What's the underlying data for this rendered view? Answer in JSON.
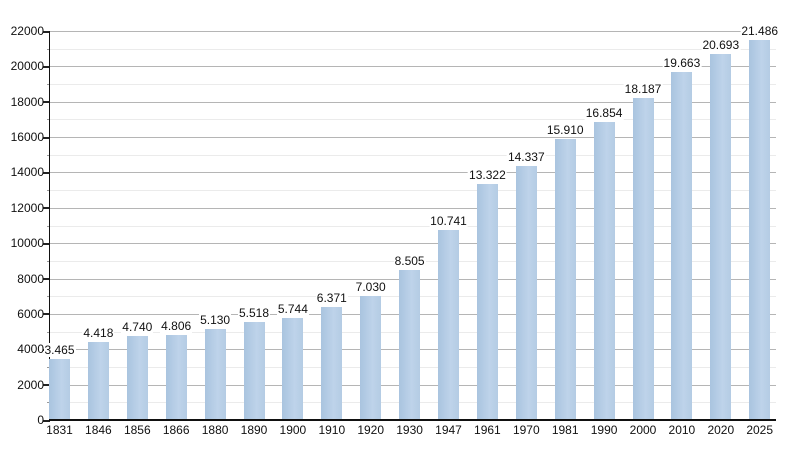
{
  "chart_data": {
    "type": "bar",
    "title": "",
    "xlabel": "",
    "ylabel": "",
    "categories": [
      "1831",
      "1846",
      "1856",
      "1866",
      "1880",
      "1890",
      "1900",
      "1910",
      "1920",
      "1930",
      "1947",
      "1961",
      "1970",
      "1981",
      "1990",
      "2000",
      "2010",
      "2020",
      "2025"
    ],
    "values": [
      3465,
      4418,
      4740,
      4806,
      5130,
      5518,
      5744,
      6371,
      7030,
      8505,
      10741,
      13322,
      14337,
      15910,
      16854,
      18187,
      19663,
      20693,
      21486
    ],
    "value_labels": [
      "3.465",
      "4.418",
      "4.740",
      "4.806",
      "5.130",
      "5.518",
      "5.744",
      "6.371",
      "7.030",
      "8.505",
      "10.741",
      "13.322",
      "14.337",
      "15.910",
      "16.854",
      "18.187",
      "19.663",
      "20.693",
      "21.486"
    ],
    "ylim": [
      0,
      22000
    ],
    "y_major_step": 2000,
    "y_minor_step": 1000,
    "y_tick_labels": [
      "0",
      "2000",
      "4000",
      "6000",
      "8000",
      "10000",
      "12000",
      "14000",
      "16000",
      "18000",
      "20000",
      "22000"
    ],
    "grid": "on",
    "legend": "none",
    "colors": {
      "background": "#ffffff",
      "bar_fill": "#b6cde5",
      "bar_fill_dark_edge": "#a9c4df",
      "bar_fill_light": "#bed3ea",
      "grid_major": "#b5b5b5",
      "grid_minor": "#ebebeb",
      "axis": "#111111",
      "text": "#111111"
    }
  }
}
